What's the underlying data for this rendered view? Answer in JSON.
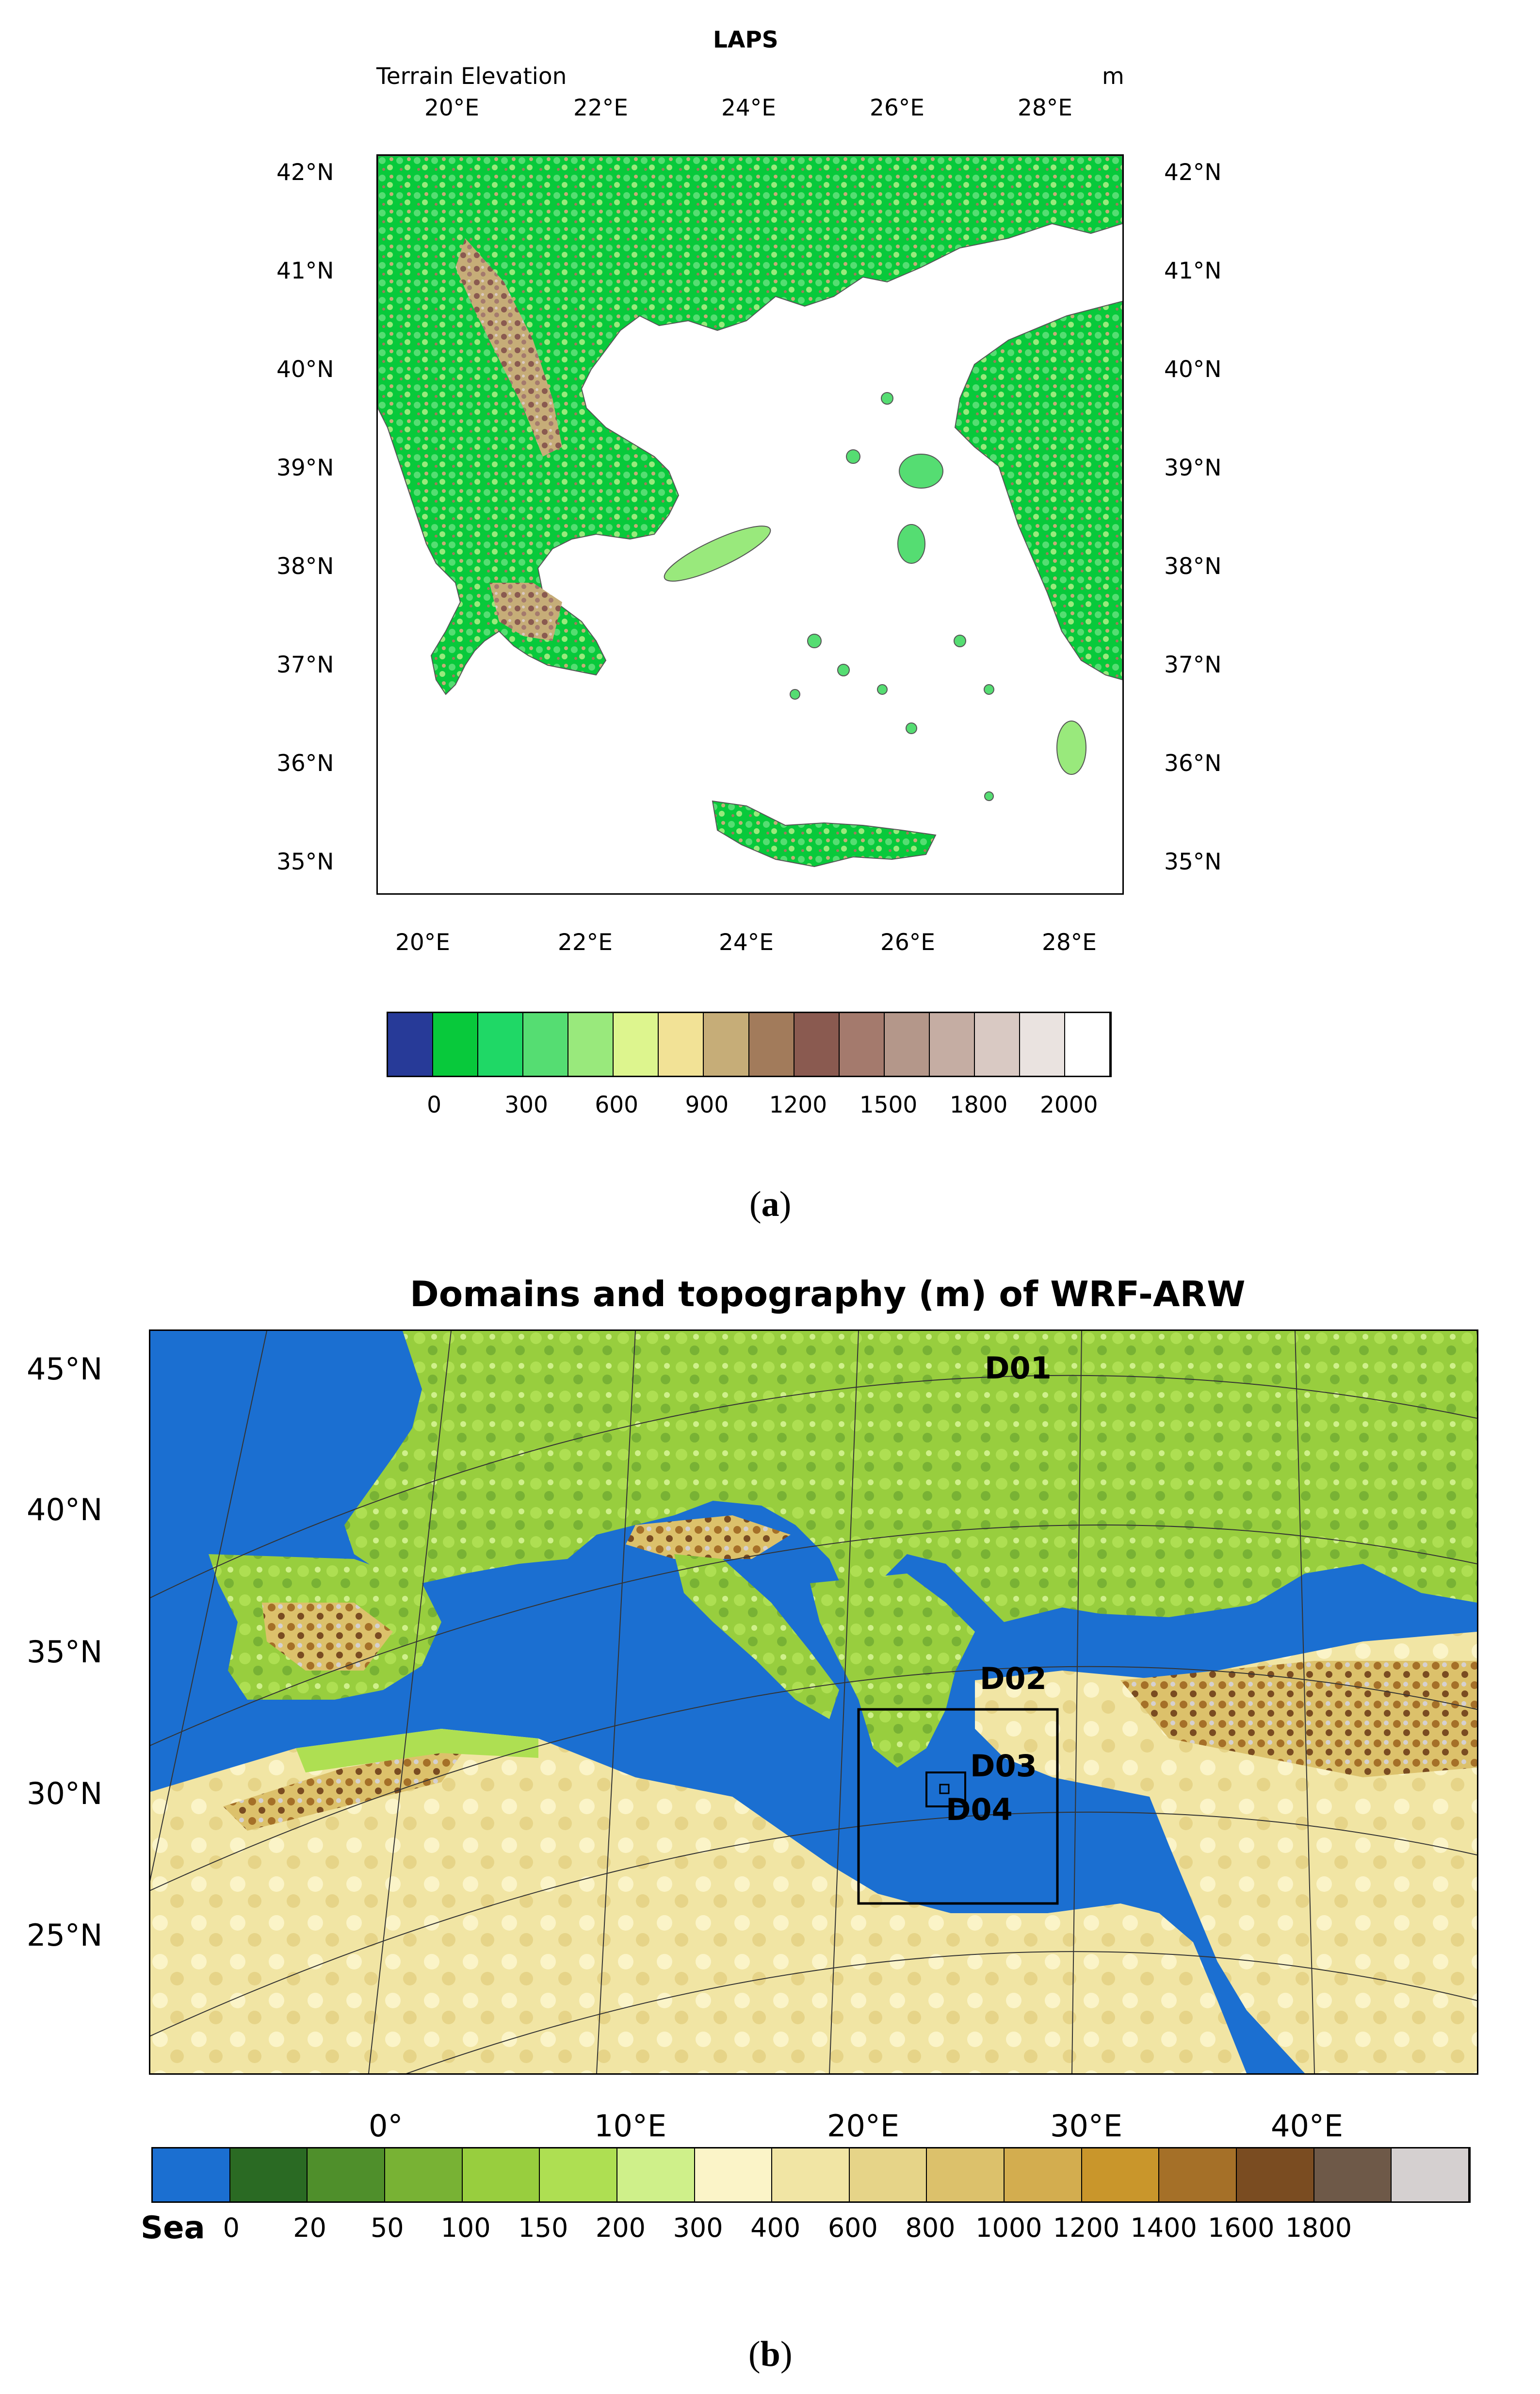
{
  "panel_a": {
    "title": "LAPS",
    "field_label": "Terrain Elevation",
    "unit_label": "m",
    "panel_label_open": "(",
    "panel_label_letter": "a",
    "panel_label_close": ")",
    "lon_ticks": [
      "20°E",
      "22°E",
      "24°E",
      "26°E",
      "28°E"
    ],
    "lat_ticks": [
      "42°N",
      "41°N",
      "40°N",
      "39°N",
      "38°N",
      "37°N",
      "36°N",
      "35°N"
    ],
    "colorbar": {
      "colors": [
        "#273a98",
        "#08c93b",
        "#1fd866",
        "#55dd72",
        "#99e97c",
        "#ddf58e",
        "#f2e296",
        "#c6ad78",
        "#a27b5b",
        "#8a5a50",
        "#a47a6d",
        "#b4978a",
        "#c5ada3",
        "#d9c9c3",
        "#eae3e0",
        "#ffffff"
      ],
      "labels": [
        "0",
        "300",
        "600",
        "900",
        "1200",
        "1500",
        "1800",
        "2000"
      ]
    },
    "land_colors": {
      "low": "#08c93b",
      "mid": "#55dd72",
      "high": "#c6ad78",
      "peak": "#8a5a50"
    }
  },
  "panel_b": {
    "title": "Domains and topography (m) of WRF-ARW",
    "panel_label_open": "(",
    "panel_label_letter": "b",
    "panel_label_close": ")",
    "lat_ticks": [
      "45°N",
      "40°N",
      "35°N",
      "30°N",
      "25°N"
    ],
    "lon_ticks": [
      "0°",
      "10°E",
      "20°E",
      "30°E",
      "40°E"
    ],
    "domains": [
      "D01",
      "D02",
      "D03",
      "D04"
    ],
    "colorbar": {
      "colors": [
        "#1b6fd1",
        "#2a6a23",
        "#4f8f2b",
        "#78b234",
        "#98ce3e",
        "#aedf52",
        "#cff08a",
        "#fbf4c8",
        "#f1e5a4",
        "#e6d488",
        "#dcc16b",
        "#d3ad4f",
        "#c9962b",
        "#a57028",
        "#7a4c21",
        "#6e5948",
        "#d5d0d0"
      ],
      "sea_label": "Sea",
      "labels": [
        "0",
        "20",
        "50",
        "100",
        "150",
        "200",
        "300",
        "400",
        "600",
        "800",
        "1000",
        "1200",
        "1400",
        "1600",
        "1800"
      ]
    },
    "sea_color": "#1b6fd1"
  }
}
